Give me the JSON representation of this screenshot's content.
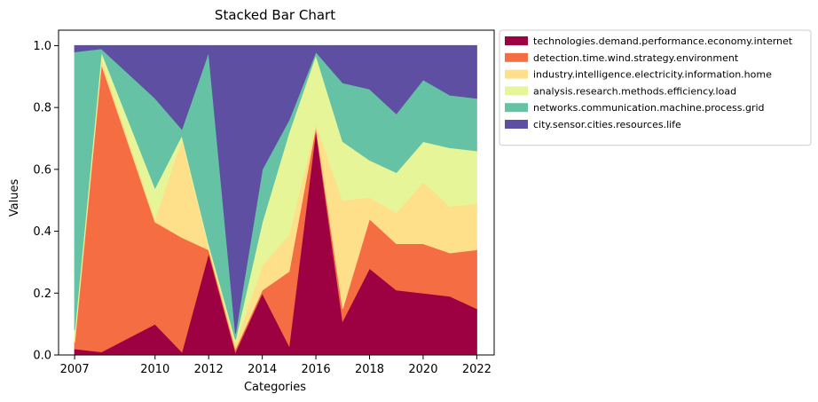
{
  "chart_data": {
    "type": "area",
    "title": "Stacked Bar Chart",
    "xlabel": "Categories",
    "ylabel": "Values",
    "x": [
      2007,
      2008,
      2010,
      2011,
      2012,
      2013,
      2014,
      2015,
      2016,
      2017,
      2018,
      2019,
      2020,
      2021,
      2022
    ],
    "xticks": [
      "2007",
      "2010",
      "2012",
      "2014",
      "2016",
      "2018",
      "2020",
      "2022"
    ],
    "xlim": [
      2006.4,
      2022.65
    ],
    "ylim": [
      0,
      1.05
    ],
    "yticks": [
      "0.0",
      "0.2",
      "0.4",
      "0.6",
      "0.8",
      "1.0"
    ],
    "legend_position": "outside right, top",
    "series": [
      {
        "name": "technologies.demand.performance.economy.internet",
        "color": "#9e0142",
        "values": [
          0.02,
          0.01,
          0.1,
          0.01,
          0.33,
          0.01,
          0.2,
          0.03,
          0.73,
          0.11,
          0.28,
          0.21,
          0.2,
          0.19,
          0.15
        ]
      },
      {
        "name": "detection.time.wind.strategy.environment",
        "color": "#f46d43",
        "values": [
          0.02,
          0.93,
          0.33,
          0.37,
          0.01,
          0.01,
          0.01,
          0.24,
          0.01,
          0.04,
          0.16,
          0.15,
          0.16,
          0.14,
          0.19
        ]
      },
      {
        "name": "industry.intelligence.electricity.information.home",
        "color": "#fee08b",
        "values": [
          0.02,
          0.02,
          0.01,
          0.32,
          0.01,
          0.02,
          0.08,
          0.12,
          0.01,
          0.35,
          0.07,
          0.1,
          0.2,
          0.15,
          0.15
        ]
      },
      {
        "name": "analysis.research.methods.efficiency.load",
        "color": "#e6f598",
        "values": [
          0.02,
          0.02,
          0.1,
          0.01,
          0.01,
          0.01,
          0.14,
          0.33,
          0.22,
          0.19,
          0.12,
          0.13,
          0.13,
          0.19,
          0.17
        ]
      },
      {
        "name": "networks.communication.machine.process.grid",
        "color": "#66c2a5",
        "values": [
          0.9,
          0.01,
          0.29,
          0.02,
          0.62,
          0.02,
          0.17,
          0.04,
          0.01,
          0.19,
          0.23,
          0.19,
          0.2,
          0.17,
          0.17
        ]
      },
      {
        "name": "city.sensor.cities.resources.life",
        "color": "#5e4fa2",
        "values": [
          0.02,
          0.01,
          0.17,
          0.27,
          0.02,
          0.93,
          0.4,
          0.24,
          0.02,
          0.12,
          0.14,
          0.22,
          0.11,
          0.16,
          0.17
        ]
      }
    ]
  }
}
